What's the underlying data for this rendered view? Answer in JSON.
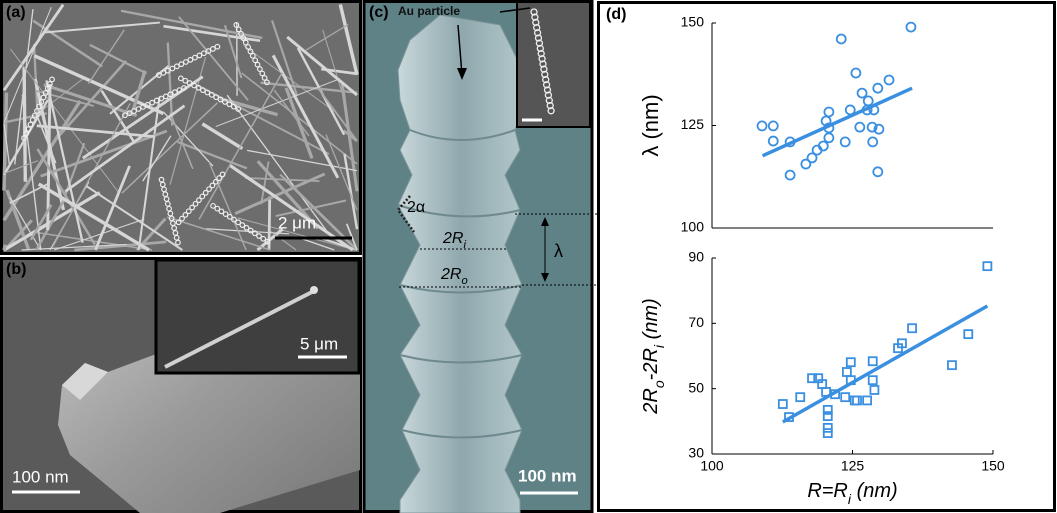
{
  "panels": {
    "a": "(a)",
    "b": "(b)",
    "c": "(c)",
    "d": "(d)"
  },
  "scale_bars": {
    "a": "2 μm",
    "b": "100 nm",
    "b_inset": "5 μm",
    "c": "100 nm"
  },
  "annotations": {
    "au_particle": "Au particle",
    "angle": "2α",
    "inner_diameter": [
      "2R",
      "i"
    ],
    "outer_diameter": [
      "2R",
      "o"
    ],
    "wavelength": "λ"
  },
  "chart_data": [
    {
      "type": "scatter",
      "ylabel": "λ  (nm)",
      "xlim": [
        100,
        150
      ],
      "ylim": [
        100,
        150
      ],
      "yticks": [
        100,
        125,
        150
      ],
      "series": [
        {
          "mark": "circle",
          "color": "#3a8fe0",
          "x": [
            108.9,
            110.9,
            110.9,
            113.9,
            113.9,
            116.7,
            117.8,
            118.7,
            119.8,
            120.3,
            120.8,
            120.8,
            120.8,
            123.0,
            123.7,
            124.6,
            125.6,
            126.3,
            126.7,
            127.6,
            127.8,
            128.5,
            128.6,
            128.8,
            129.5,
            129.7,
            129.5,
            131.5,
            135.4
          ],
          "values": [
            124.9,
            124.9,
            121.2,
            121.0,
            112.9,
            115.6,
            117.1,
            119.0,
            120.0,
            126.1,
            124.4,
            122.0,
            128.3,
            146.1,
            121.0,
            128.8,
            137.8,
            124.6,
            132.9,
            128.8,
            131.0,
            124.6,
            121.0,
            128.8,
            134.1,
            124.1,
            113.7,
            136.1,
            149.0
          ]
        },
        {
          "mark": "line",
          "color": "#3a8fe0",
          "x": [
            109.0,
            135.6
          ],
          "values": [
            117.6,
            134.1
          ]
        }
      ]
    },
    {
      "type": "scatter",
      "xlabel": [
        "R=R",
        "i",
        "  (nm)"
      ],
      "ylabel": [
        "2R",
        "o",
        "-2R",
        "i",
        "  (nm)"
      ],
      "xlim": [
        100,
        150
      ],
      "xticks": [
        100,
        125,
        150
      ],
      "ylim": [
        30,
        90
      ],
      "yticks": [
        30,
        50,
        70,
        90
      ],
      "series": [
        {
          "mark": "square",
          "color": "#3a8fe0",
          "x": [
            112.6,
            113.7,
            115.7,
            117.8,
            118.9,
            119.6,
            120.3,
            120.6,
            120.6,
            120.6,
            120.6,
            121.9,
            123.7,
            124.0,
            124.7,
            124.7,
            125.4,
            125.8,
            127.6,
            128.6,
            128.6,
            128.9,
            133.1,
            133.8,
            135.6,
            142.7,
            145.6,
            149.0
          ],
          "values": [
            45.3,
            41.3,
            47.4,
            53.2,
            53.2,
            51.4,
            49.0,
            43.5,
            41.6,
            38.0,
            36.4,
            48.3,
            47.4,
            55.1,
            58.1,
            52.6,
            46.4,
            46.4,
            46.4,
            58.4,
            52.6,
            49.6,
            62.4,
            63.9,
            68.5,
            57.2,
            66.7,
            87.5
          ]
        },
        {
          "mark": "line",
          "color": "#3a8fe0",
          "x": [
            112.6,
            149.0
          ],
          "values": [
            39.8,
            75.3
          ]
        }
      ]
    }
  ]
}
